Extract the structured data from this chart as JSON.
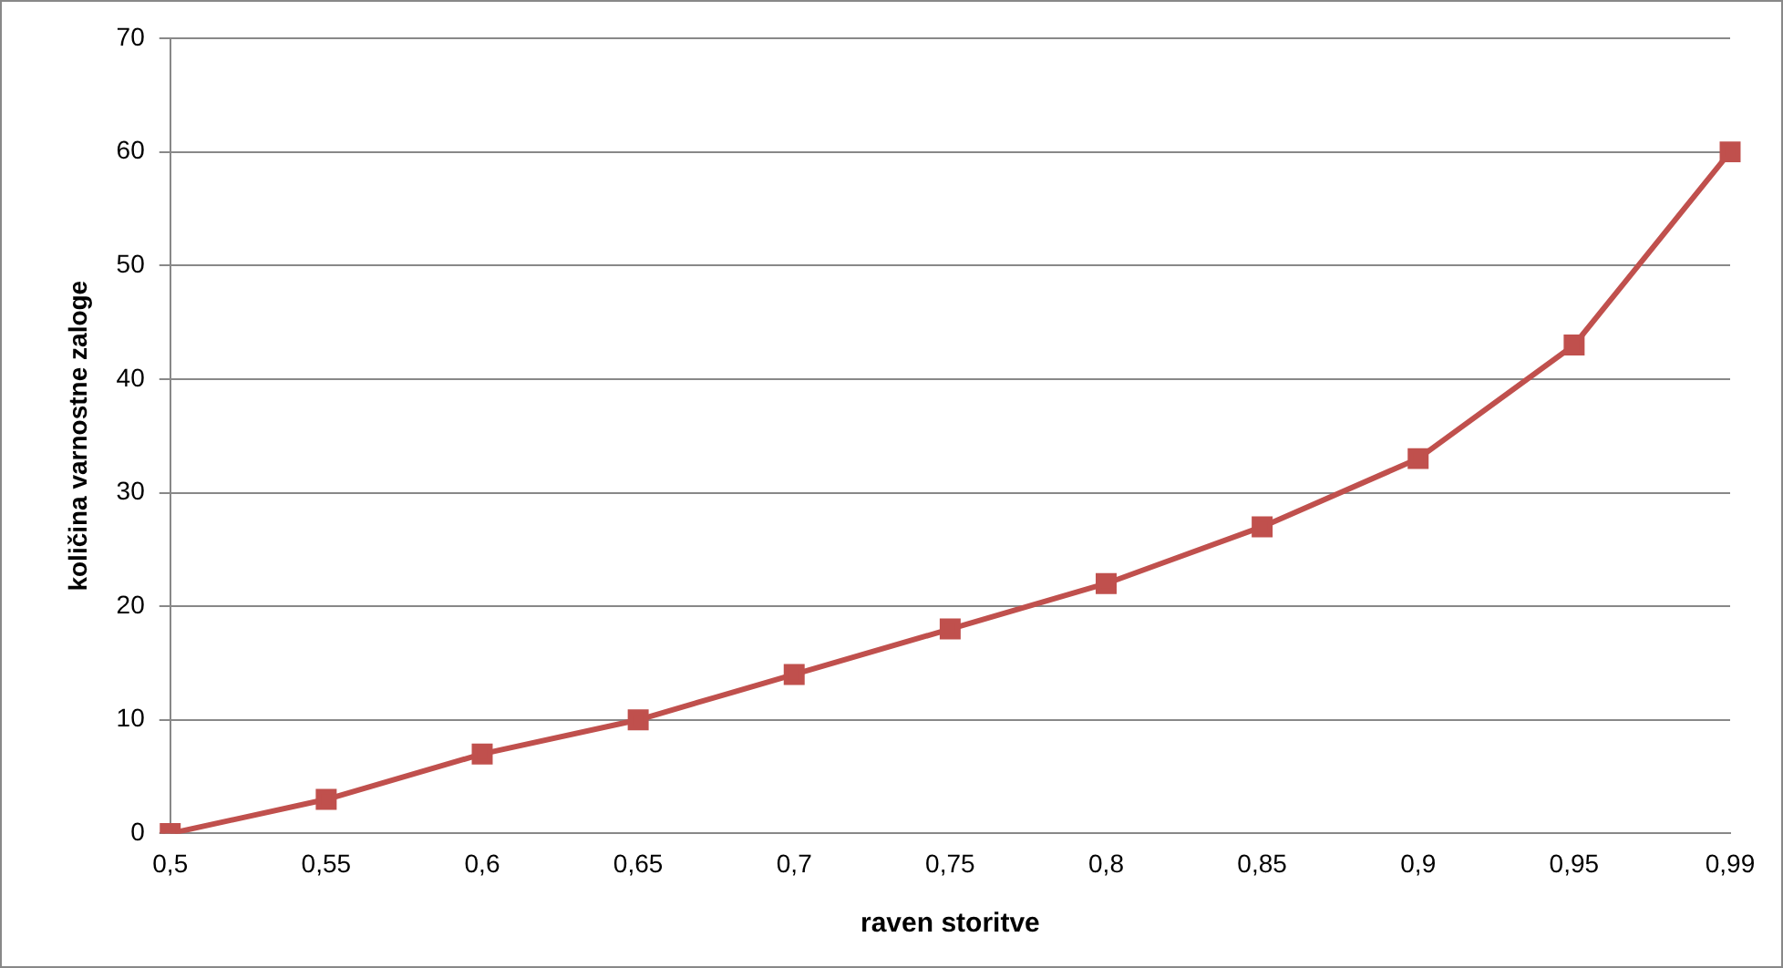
{
  "chart_data": {
    "type": "line",
    "xlabel": "raven storitve",
    "ylabel": "količina varnostne zaloge",
    "categories": [
      "0,5",
      "0,55",
      "0,6",
      "0,65",
      "0,7",
      "0,75",
      "0,8",
      "0,85",
      "0,9",
      "0,95",
      "0,99"
    ],
    "series": [
      {
        "color": "#c0504d",
        "values": [
          0,
          3,
          7,
          10,
          14,
          18,
          22,
          27,
          33,
          43,
          60
        ]
      }
    ],
    "ylim": [
      0,
      70
    ],
    "yticks": [
      0,
      10,
      20,
      30,
      40,
      50,
      60,
      70
    ],
    "grid": "y",
    "legend": false,
    "marker": "square",
    "line_style": "solid"
  }
}
